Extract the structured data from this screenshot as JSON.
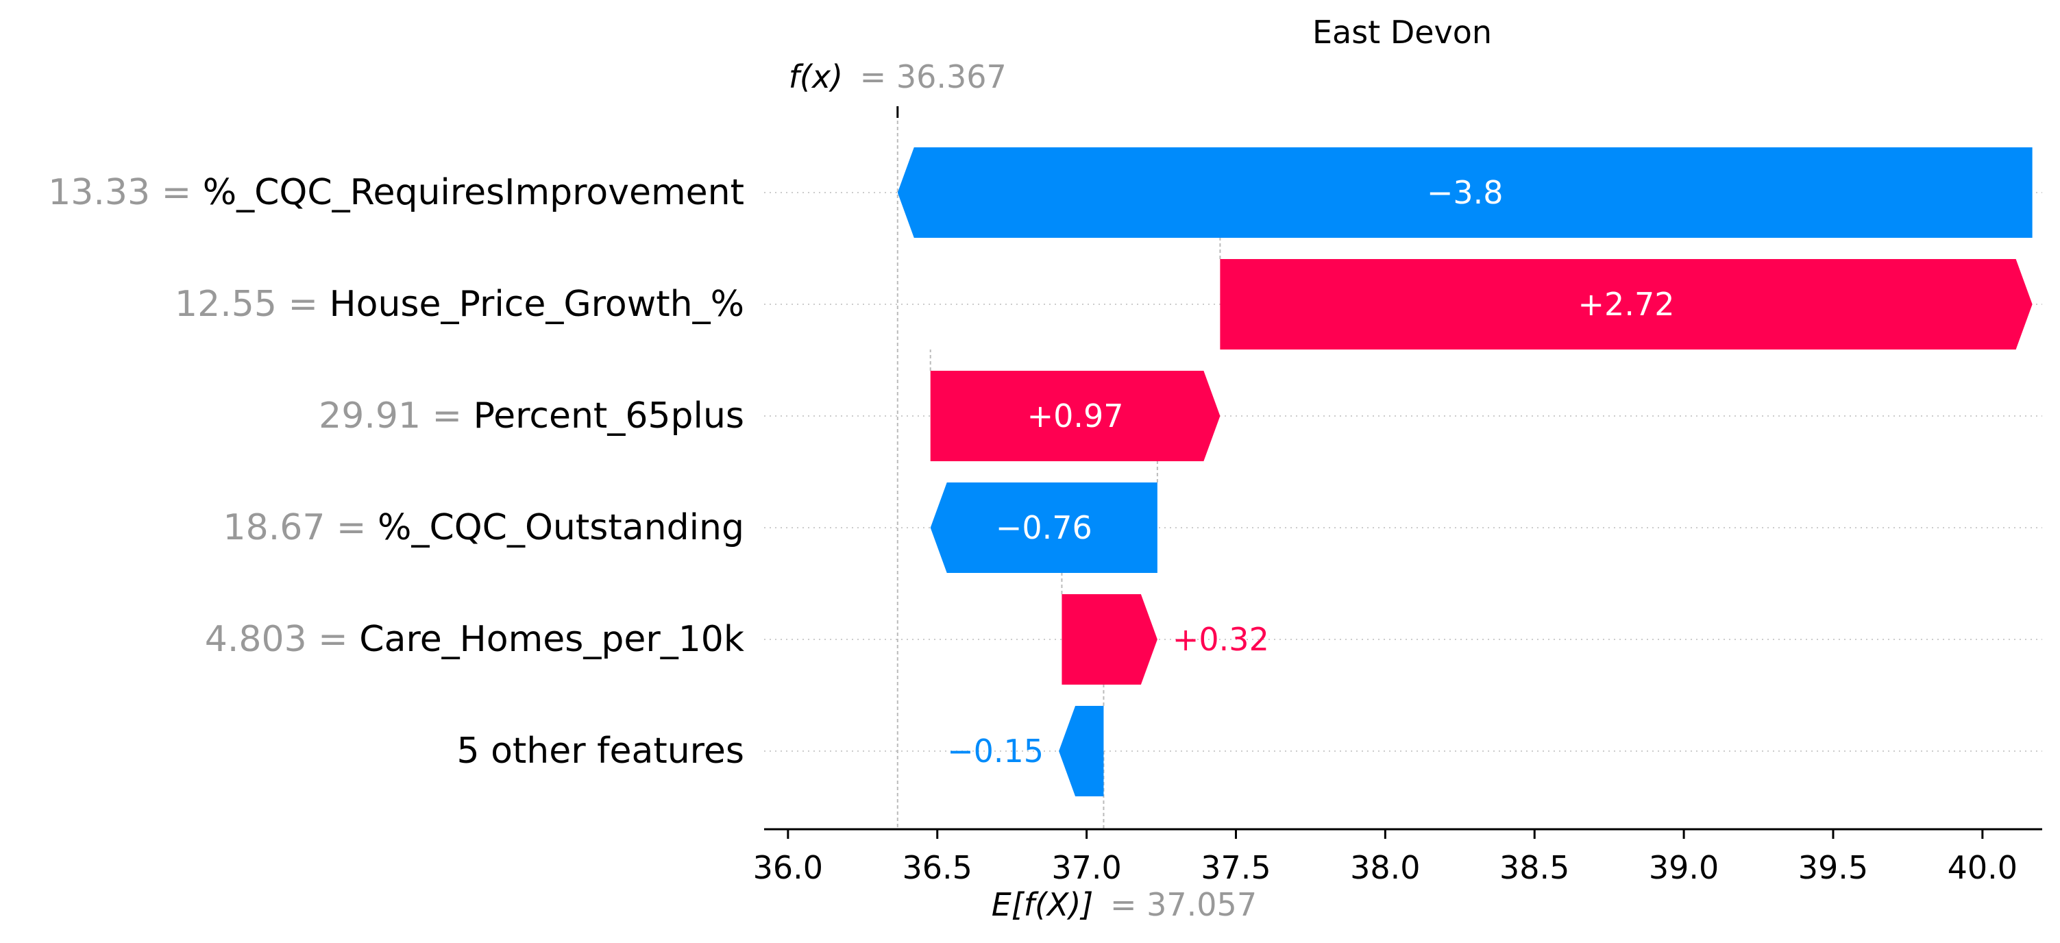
{
  "chart_data": {
    "type": "waterfall",
    "title": "East Devon",
    "fx_label": "f(x)",
    "fx_value": "= 36.367",
    "base_label": "E[f(X)]",
    "base_value": "= 37.057",
    "fx": 36.367,
    "base": 37.057,
    "xlim": [
      35.92,
      40.2
    ],
    "xticks": [
      36.0,
      36.5,
      37.0,
      37.5,
      38.0,
      38.5,
      39.0,
      39.5,
      40.0
    ],
    "xtick_labels": [
      "36.0",
      "36.5",
      "37.0",
      "37.5",
      "38.0",
      "38.5",
      "39.0",
      "39.5",
      "40.0"
    ],
    "features": [
      {
        "value": "13.33",
        "name": "%_CQC_RequiresImprovement",
        "contribution": -3.8,
        "label": "−3.8",
        "start": 40.167,
        "end": 36.367
      },
      {
        "value": "12.55",
        "name": "House_Price_Growth_%",
        "contribution": 2.72,
        "label": "+2.72",
        "start": 37.447,
        "end": 40.167
      },
      {
        "value": "29.91",
        "name": "Percent_65plus",
        "contribution": 0.97,
        "label": "+0.97",
        "start": 36.477,
        "end": 37.447
      },
      {
        "value": "18.67",
        "name": "%_CQC_Outstanding",
        "contribution": -0.76,
        "label": "−0.76",
        "start": 37.237,
        "end": 36.477
      },
      {
        "value": "4.803",
        "name": "Care_Homes_per_10k",
        "contribution": 0.32,
        "label": "+0.32",
        "start": 36.917,
        "end": 37.237
      },
      {
        "value": "",
        "name": "5 other features",
        "contribution": -0.15,
        "label": "−0.15",
        "start": 37.057,
        "end": 36.907
      }
    ],
    "colors": {
      "positive": "#ff0051",
      "negative": "#008bfb",
      "muted": "#999999"
    }
  }
}
